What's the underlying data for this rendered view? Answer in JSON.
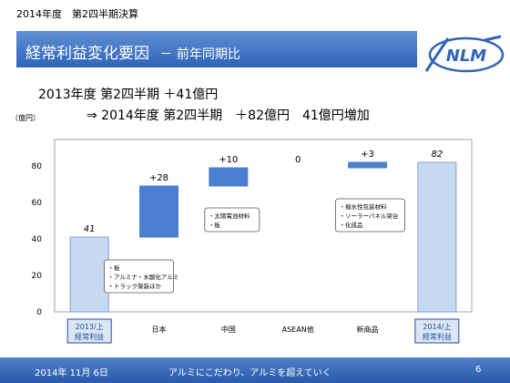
{
  "header": {
    "subtitle": "2014年度　第2四半期決算"
  },
  "title": {
    "main": "経常利益変化要因",
    "suffix": "－ 前年同期比"
  },
  "summary": {
    "line1": "2013年度 第2四半期 ＋41億円",
    "line2": "⇒ 2014年度 第2四半期　＋82億円　41億円増加"
  },
  "chart_data": {
    "type": "bar",
    "subtype": "waterfall",
    "unit_label": "（億円）",
    "ylim": [
      0,
      90
    ],
    "yticks": [
      0,
      20,
      40,
      60,
      80
    ],
    "grid": false,
    "categories": [
      "2013/上\n経常利益",
      "日本",
      "中国",
      "ASEAN他",
      "新商品",
      "2014/上\n経常利益"
    ],
    "bars": [
      {
        "category": "2013/上 経常利益",
        "kind": "total",
        "value": 41,
        "label": "41"
      },
      {
        "category": "日本",
        "kind": "delta",
        "value": 28,
        "label": "+28"
      },
      {
        "category": "中国",
        "kind": "delta",
        "value": 10,
        "label": "+10"
      },
      {
        "category": "ASEAN他",
        "kind": "delta",
        "value": 0,
        "label": "0"
      },
      {
        "category": "新商品",
        "kind": "delta",
        "value": 3,
        "label": "+3"
      },
      {
        "category": "2014/上 経常利益",
        "kind": "total",
        "value": 82,
        "label": "82"
      }
    ],
    "annotations": [
      {
        "category": "日本",
        "lines": [
          "・板",
          "・アルミナ・水酸化アルミ",
          "・トラック架装ほか"
        ]
      },
      {
        "category": "中国",
        "lines": [
          "・太陽電池材料",
          "・板"
        ]
      },
      {
        "category": "新商品",
        "lines": [
          "・撥水性包装材料",
          "・ソーラーパネル架台",
          "・化成品"
        ]
      }
    ],
    "colors": {
      "total": "#c6d9f1",
      "total_stroke": "#7fa3d6",
      "delta": "#4a7fd0",
      "category_box": "#1f4fa0"
    }
  },
  "logo": {
    "text": "NLM"
  },
  "footer": {
    "date": "2014年 11月 6日",
    "slogan": "アルミにこだわり、アルミを超えていく",
    "page": "6"
  }
}
